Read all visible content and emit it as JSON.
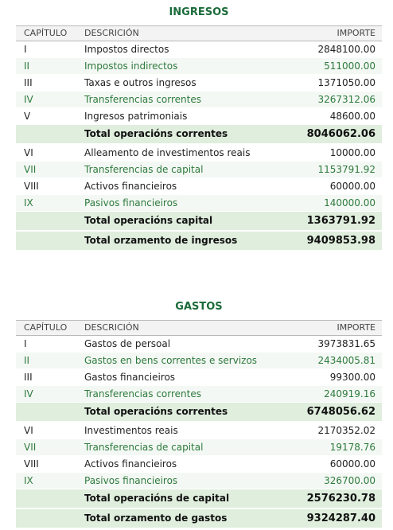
{
  "ingresos": {
    "title": "INGRESOS",
    "headers": {
      "capitulo": "CAPÍTULO",
      "descricion": "DESCRICIÓN",
      "importe": "IMPORTE"
    },
    "rows": [
      {
        "cap": "I",
        "desc": "Impostos directos",
        "imp": "2848100.00"
      },
      {
        "cap": "II",
        "desc": "Impostos indirectos",
        "imp": "511000.00"
      },
      {
        "cap": "III",
        "desc": "Taxas e outros ingresos",
        "imp": "1371050.00"
      },
      {
        "cap": "IV",
        "desc": "Transferencias correntes",
        "imp": "3267312.06"
      },
      {
        "cap": "V",
        "desc": "Ingresos patrimoniais",
        "imp": "48600.00"
      },
      {
        "total": true,
        "desc": "Total operacións correntes",
        "imp": "8046062.06"
      },
      {
        "cap": "VI",
        "desc": "Alleamento de investimentos reais",
        "imp": "10000.00"
      },
      {
        "cap": "VII",
        "desc": "Transferencias de capital",
        "imp": "1153791.92"
      },
      {
        "cap": "VIII",
        "desc": "Activos financieiros",
        "imp": "60000.00"
      },
      {
        "cap": "IX",
        "desc": "Pasivos financieiros",
        "imp": "140000.00"
      },
      {
        "total": true,
        "desc": "Total operacións capital",
        "imp": "1363791.92"
      },
      {
        "total": true,
        "desc": "Total orzamento de ingresos",
        "imp": "9409853.98"
      }
    ]
  },
  "gastos": {
    "title": "GASTOS",
    "headers": {
      "capitulo": "CAPÍTULO",
      "descricion": "DESCRICIÓN",
      "importe": "IMPORTE"
    },
    "rows": [
      {
        "cap": "I",
        "desc": "Gastos de persoal",
        "imp": "3973831.65"
      },
      {
        "cap": "II",
        "desc": "Gastos en bens correntes e servizos",
        "imp": "2434005.81"
      },
      {
        "cap": "III",
        "desc": "Gastos financieiros",
        "imp": "99300.00"
      },
      {
        "cap": "IV",
        "desc": "Transferencias correntes",
        "imp": "240919.16"
      },
      {
        "total": true,
        "desc": "Total operacións correntes",
        "imp": "6748056.62"
      },
      {
        "cap": "VI",
        "desc": "Investimentos reais",
        "imp": "2170352.02"
      },
      {
        "cap": "VII",
        "desc": "Transferencias de capital",
        "imp": "19178.76"
      },
      {
        "cap": "VIII",
        "desc": "Activos financieiros",
        "imp": "60000.00"
      },
      {
        "cap": "IX",
        "desc": "Pasivos financieiros",
        "imp": "326700.00"
      },
      {
        "total": true,
        "desc": "Total operacións de capital",
        "imp": "2576230.78"
      },
      {
        "total": true,
        "desc": "Total orzamento de gastos",
        "imp": "9324287.40"
      }
    ]
  }
}
